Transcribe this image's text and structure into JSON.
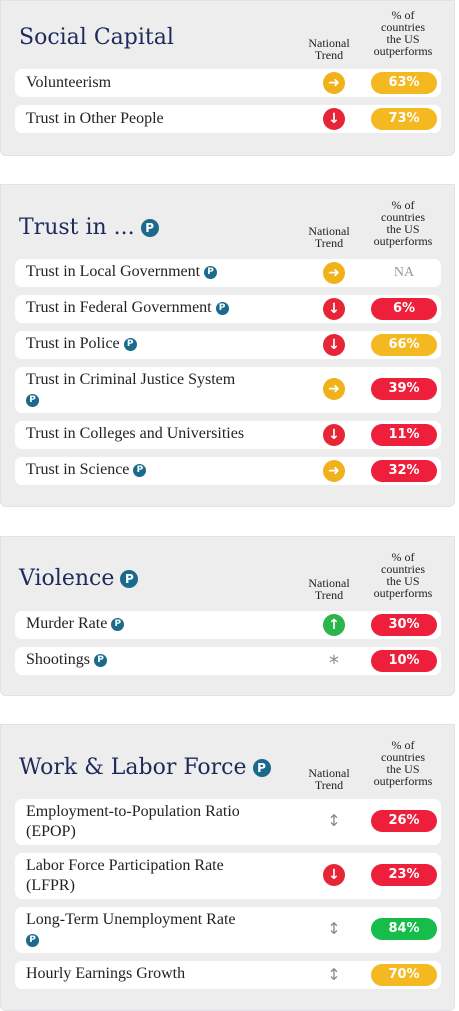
{
  "column_headers": {
    "trend": "National Trend",
    "outperform_line1": "% of",
    "outperform_line2": "countries",
    "outperform_line3": "the US",
    "outperform_line4": "outperforms"
  },
  "badge_letter": "P",
  "colors": {
    "title": "#1e2a5a",
    "yellow": "#f4b820",
    "red": "#ee1f3b",
    "green": "#17bd4a",
    "badge": "#1a6a8c"
  },
  "sections": [
    {
      "title": "Social Capital",
      "rows": [
        {
          "label": "Volunteerism",
          "trend": "right-arrow-icon",
          "value": "63%",
          "color": "yellow"
        },
        {
          "label": "Trust in Other People",
          "trend": "down-arrow-icon",
          "value": "73%",
          "color": "yellow"
        }
      ]
    },
    {
      "title": "Trust in ...",
      "rows": [
        {
          "label": "Trust in Local Government",
          "trend": "right-arrow-icon",
          "value": "NA",
          "color": "none"
        },
        {
          "label": "Trust in Federal Government",
          "trend": "down-arrow-icon",
          "value": "6%",
          "color": "red"
        },
        {
          "label": "Trust in Police",
          "trend": "down-arrow-icon",
          "value": "66%",
          "color": "yellow"
        },
        {
          "label": "Trust in Criminal Justice System",
          "trend": "right-arrow-icon",
          "value": "39%",
          "color": "red"
        },
        {
          "label": "Trust in Colleges and Universities",
          "trend": "down-arrow-icon",
          "value": "11%",
          "color": "red"
        },
        {
          "label": "Trust in Science",
          "trend": "right-arrow-icon",
          "value": "32%",
          "color": "red"
        }
      ]
    },
    {
      "title": "Violence",
      "rows": [
        {
          "label": "Murder Rate",
          "trend": "up-arrow-icon",
          "value": "30%",
          "color": "red"
        },
        {
          "label": "Shootings",
          "trend": "asterisk-icon",
          "value": "10%",
          "color": "red"
        }
      ]
    },
    {
      "title": "Work & Labor Force",
      "rows": [
        {
          "label": "Employment-to-Population Ratio",
          "label2": "(EPOP)",
          "trend": "mixed-arrow-icon",
          "value": "26%",
          "color": "red"
        },
        {
          "label": "Labor Force Participation Rate",
          "label2": "(LFPR)",
          "trend": "down-arrow-icon",
          "value": "23%",
          "color": "red"
        },
        {
          "label": "Long-Term Unemployment Rate",
          "trend": "mixed-arrow-icon",
          "value": "84%",
          "color": "green"
        },
        {
          "label": "Hourly Earnings Growth",
          "trend": "mixed-arrow-icon",
          "value": "70%",
          "color": "yellow"
        }
      ]
    }
  ]
}
